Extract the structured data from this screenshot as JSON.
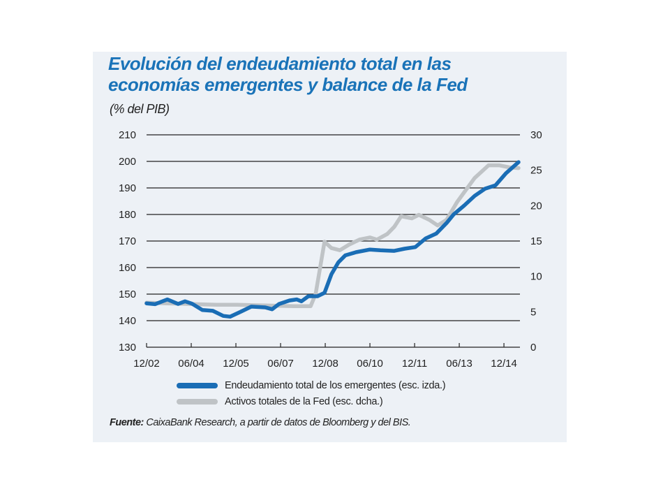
{
  "colors": {
    "panel_bg": "#edf1f6",
    "title": "#1a73b8",
    "series_debt": "#1a6db5",
    "series_fed": "#bfc3c6",
    "grid": "#222222"
  },
  "chart_data": {
    "type": "line",
    "title": "Evolución del endeudamiento total en las economías emergentes y balance de la Fed",
    "subtitle": "(% del PIB)",
    "xlabel": "",
    "x_units": "months since 12/2002",
    "xlim": [
      0,
      150
    ],
    "x_ticks": [
      {
        "value": 0,
        "label": "12/02"
      },
      {
        "value": 18,
        "label": "06/04"
      },
      {
        "value": 36,
        "label": "12/05"
      },
      {
        "value": 54,
        "label": "06/07"
      },
      {
        "value": 72,
        "label": "12/08"
      },
      {
        "value": 90,
        "label": "06/10"
      },
      {
        "value": 108,
        "label": "12/11"
      },
      {
        "value": 126,
        "label": "06/13"
      },
      {
        "value": 144,
        "label": "12/14"
      }
    ],
    "y_left": {
      "label": "",
      "ylim": [
        130,
        210
      ],
      "ticks": [
        "130",
        "140",
        "150",
        "160",
        "170",
        "180",
        "190",
        "200",
        "210"
      ]
    },
    "y_right": {
      "label": "",
      "ylim": [
        0,
        30
      ],
      "ticks": [
        "0",
        "5",
        "10",
        "15",
        "20",
        "25",
        "30"
      ]
    },
    "grid": "horizontal",
    "legend_position": "bottom",
    "series": [
      {
        "name": "Endeudamiento total de los emergentes (esc. izda.)",
        "axis": "left",
        "x": [
          0,
          3.4,
          8.4,
          12.7,
          15.5,
          18.3,
          22.5,
          26.7,
          30.9,
          33.7,
          38,
          42.2,
          47.8,
          50.6,
          53.4,
          57.6,
          60.5,
          62.4,
          65.2,
          68.9,
          71.7,
          74.5,
          77.3,
          80.1,
          84.4,
          90,
          94.2,
          99.8,
          104,
          108.3,
          112.5,
          116.7,
          120.9,
          123.7,
          128,
          132.2,
          136.4,
          140.6,
          144.8,
          149.9
        ],
        "values": [
          146.5,
          146.2,
          148.0,
          146.3,
          147.3,
          146.4,
          144.0,
          143.7,
          141.8,
          141.5,
          143.4,
          145.3,
          145.0,
          144.3,
          146.3,
          147.6,
          148.0,
          147.3,
          149.2,
          149.2,
          150.5,
          157.5,
          162.0,
          164.6,
          165.8,
          166.8,
          166.5,
          166.3,
          167.1,
          167.7,
          171.0,
          172.8,
          176.8,
          180.0,
          183.4,
          187.0,
          189.7,
          191.0,
          195.5,
          199.7
        ]
      },
      {
        "name": "Activos totales de la Fed (esc. dcha.)",
        "axis": "right",
        "x": [
          0,
          8.4,
          18.3,
          28.1,
          36.6,
          47.8,
          59.1,
          66.1,
          68.1,
          70.3,
          71.7,
          74.5,
          77.9,
          81.6,
          85.8,
          90,
          92.8,
          97,
          99.8,
          102.6,
          106.9,
          109.7,
          113.9,
          117.3,
          120.9,
          125.1,
          128,
          132.2,
          137.8,
          142,
          146.2,
          149.9
        ],
        "values": [
          6.3,
          6.2,
          6.1,
          6.0,
          6.0,
          5.9,
          5.8,
          5.8,
          7.5,
          12.0,
          14.9,
          14.0,
          13.7,
          14.5,
          15.2,
          15.5,
          15.2,
          16.0,
          17.0,
          18.5,
          18.2,
          18.7,
          18.0,
          17.2,
          18.0,
          20.5,
          21.9,
          23.9,
          25.7,
          25.7,
          25.4,
          25.3
        ]
      }
    ],
    "source_label": "Fuente:",
    "source_text": " CaixaBank Research, a partir de datos de Bloomberg y del BIS."
  }
}
